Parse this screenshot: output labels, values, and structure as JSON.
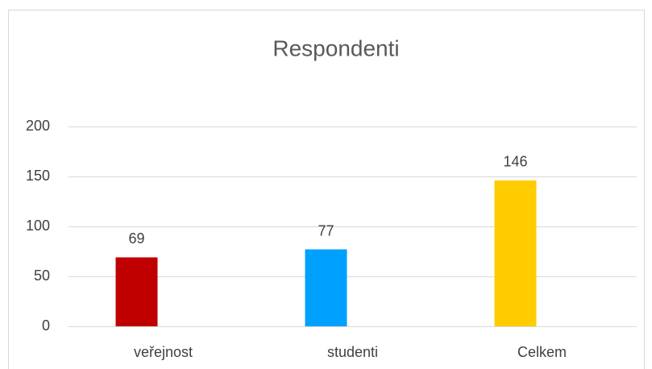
{
  "chart_data": {
    "type": "bar",
    "title": "Respondenti",
    "categories": [
      "veřejnost",
      "studenti",
      "Celkem"
    ],
    "values": [
      69,
      77,
      146
    ],
    "colors": [
      "#c00000",
      "#00a0ff",
      "#ffcc00"
    ],
    "ylim": [
      0,
      200
    ],
    "yticks": [
      0,
      50,
      100,
      150,
      200
    ],
    "grid": true,
    "data_labels": true
  }
}
